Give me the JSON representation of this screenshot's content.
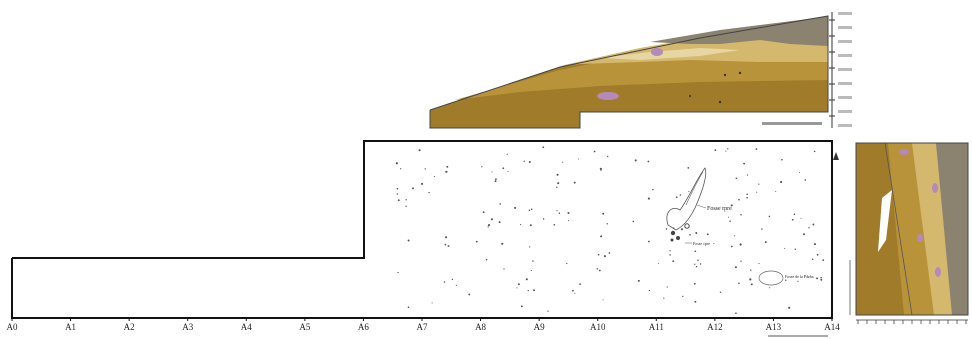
{
  "figure": {
    "grid_labels": [
      "A0",
      "A1",
      "A2",
      "A3",
      "A4",
      "A5",
      "A6",
      "A7",
      "A8",
      "A9",
      "A10",
      "A11",
      "A12",
      "A13",
      "A14"
    ],
    "plan_annotations": {
      "feature_main": "Fosse rpre",
      "feature_small": "Fosse cpre",
      "feature_right": "Fosse de la Pdzba"
    }
  },
  "colors": {
    "dark_ochre": "#a07b2a",
    "mid_ochre": "#bf9d44",
    "light_ochre": "#d9c27e",
    "pale_sand": "#e6d6a4",
    "grey_brown": "#8c8270",
    "lilac": "#b58ab8",
    "outline": "#222222"
  },
  "icons": [
    "north-arrow-icon"
  ]
}
